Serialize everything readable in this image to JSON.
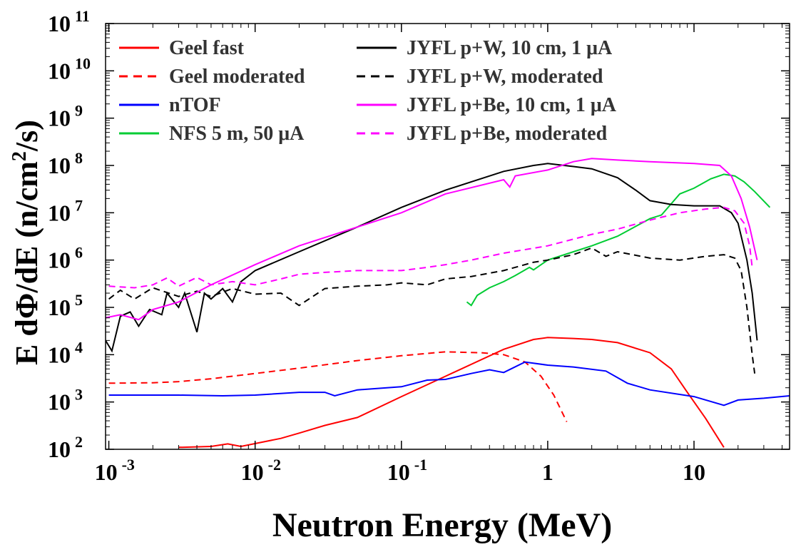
{
  "chart_data": {
    "type": "line",
    "title": "",
    "xlabel": "Neutron Energy (MeV)",
    "ylabel": "E dΦ/dE (n/cm²/s)",
    "ylabel_parts": {
      "main": "E dΦ/dE (n/cm",
      "sup": "2",
      "tail": "/s)"
    },
    "x_scale": "log",
    "y_scale": "log",
    "xlim": [
      0.00095,
      45
    ],
    "ylim": [
      100,
      100000000000
    ],
    "grid": false,
    "legend_position": "top-left",
    "x_ticks": [
      {
        "value": 0.001,
        "base": "10",
        "exp": "-3"
      },
      {
        "value": 0.01,
        "base": "10",
        "exp": "-2"
      },
      {
        "value": 0.1,
        "base": "10",
        "exp": "-1"
      },
      {
        "value": 1,
        "base": "1",
        "exp": ""
      },
      {
        "value": 10,
        "base": "10",
        "exp": ""
      }
    ],
    "y_ticks": [
      {
        "value": 100,
        "base": "10",
        "exp": "2"
      },
      {
        "value": 1000,
        "base": "10",
        "exp": "3"
      },
      {
        "value": 10000,
        "base": "10",
        "exp": "4"
      },
      {
        "value": 100000,
        "base": "10",
        "exp": "5"
      },
      {
        "value": 1000000,
        "base": "10",
        "exp": "6"
      },
      {
        "value": 10000000,
        "base": "10",
        "exp": "7"
      },
      {
        "value": 100000000,
        "base": "10",
        "exp": "8"
      },
      {
        "value": 1000000000,
        "base": "10",
        "exp": "9"
      },
      {
        "value": 10000000000,
        "base": "10",
        "exp": "10"
      },
      {
        "value": 100000000000,
        "base": "10",
        "exp": "11"
      }
    ],
    "series": [
      {
        "name": "Geel fast",
        "color": "#ff0000",
        "dash": "solid",
        "points": [
          [
            0.003,
            110
          ],
          [
            0.005,
            115
          ],
          [
            0.0065,
            130
          ],
          [
            0.008,
            115
          ],
          [
            0.015,
            170
          ],
          [
            0.02,
            220
          ],
          [
            0.03,
            320
          ],
          [
            0.05,
            470
          ],
          [
            0.1,
            1300
          ],
          [
            0.2,
            3500
          ],
          [
            0.5,
            13000
          ],
          [
            0.8,
            21000
          ],
          [
            1.0,
            23000
          ],
          [
            1.5,
            22000
          ],
          [
            2,
            21000
          ],
          [
            3,
            18000
          ],
          [
            5,
            11000
          ],
          [
            7,
            5000
          ],
          [
            9,
            1600
          ],
          [
            12,
            450
          ],
          [
            16,
            110
          ]
        ]
      },
      {
        "name": "Geel moderated",
        "color": "#ff0000",
        "dash": "dashed",
        "points": [
          [
            0.001,
            2500
          ],
          [
            0.002,
            2550
          ],
          [
            0.003,
            2700
          ],
          [
            0.005,
            3100
          ],
          [
            0.01,
            4000
          ],
          [
            0.02,
            5200
          ],
          [
            0.05,
            7500
          ],
          [
            0.1,
            9500
          ],
          [
            0.2,
            11500
          ],
          [
            0.35,
            11000
          ],
          [
            0.5,
            10000
          ],
          [
            0.7,
            7000
          ],
          [
            0.9,
            3500
          ],
          [
            1.1,
            1400
          ],
          [
            1.35,
            380
          ]
        ]
      },
      {
        "name": "nTOF",
        "color": "#0000ff",
        "dash": "solid",
        "points": [
          [
            0.001,
            1400
          ],
          [
            0.003,
            1400
          ],
          [
            0.006,
            1350
          ],
          [
            0.01,
            1400
          ],
          [
            0.02,
            1600
          ],
          [
            0.03,
            1600
          ],
          [
            0.035,
            1350
          ],
          [
            0.05,
            1800
          ],
          [
            0.1,
            2100
          ],
          [
            0.15,
            2900
          ],
          [
            0.2,
            3000
          ],
          [
            0.3,
            4000
          ],
          [
            0.4,
            4800
          ],
          [
            0.5,
            4200
          ],
          [
            0.7,
            7000
          ],
          [
            1.0,
            6000
          ],
          [
            1.5,
            5500
          ],
          [
            2.5,
            4500
          ],
          [
            3.5,
            2500
          ],
          [
            5,
            1800
          ],
          [
            10,
            1300
          ],
          [
            16,
            850
          ],
          [
            20,
            1100
          ],
          [
            30,
            1200
          ],
          [
            45,
            1350
          ]
        ]
      },
      {
        "name": "NFS 5 m, 50 μA",
        "color": "#00cc33",
        "dash": "solid",
        "points": [
          [
            0.28,
            130000
          ],
          [
            0.3,
            110000
          ],
          [
            0.33,
            180000
          ],
          [
            0.4,
            260000
          ],
          [
            0.5,
            350000
          ],
          [
            0.6,
            470000
          ],
          [
            0.75,
            700000
          ],
          [
            0.8,
            620000
          ],
          [
            1.0,
            1000000
          ],
          [
            1.5,
            1500000
          ],
          [
            2,
            2000000
          ],
          [
            3,
            3200000
          ],
          [
            5,
            7500000
          ],
          [
            6,
            9000000
          ],
          [
            8,
            25000000
          ],
          [
            10,
            33000000
          ],
          [
            13,
            52000000
          ],
          [
            16,
            65000000
          ],
          [
            19,
            60000000
          ],
          [
            22,
            45000000
          ],
          [
            26,
            28000000
          ],
          [
            33,
            13000000
          ]
        ]
      },
      {
        "name": "JYFL p+W, 10 cm, 1 μA",
        "color": "#000000",
        "dash": "solid",
        "points": [
          [
            0.00095,
            20000
          ],
          [
            0.00105,
            12000
          ],
          [
            0.0012,
            65000
          ],
          [
            0.0014,
            80000
          ],
          [
            0.0016,
            40000
          ],
          [
            0.0019,
            90000
          ],
          [
            0.0023,
            70000
          ],
          [
            0.0025,
            200000
          ],
          [
            0.003,
            100000
          ],
          [
            0.0033,
            200000
          ],
          [
            0.004,
            30000
          ],
          [
            0.0045,
            200000
          ],
          [
            0.005,
            150000
          ],
          [
            0.006,
            250000
          ],
          [
            0.007,
            130000
          ],
          [
            0.008,
            350000
          ],
          [
            0.01,
            600000
          ],
          [
            0.02,
            1500000
          ],
          [
            0.05,
            5000000
          ],
          [
            0.1,
            13000000
          ],
          [
            0.2,
            30000000
          ],
          [
            0.5,
            75000000
          ],
          [
            0.8,
            100000000
          ],
          [
            1.0,
            110000000
          ],
          [
            1.5,
            95000000
          ],
          [
            2,
            85000000
          ],
          [
            3,
            55000000
          ],
          [
            4,
            30000000
          ],
          [
            5,
            18000000
          ],
          [
            7,
            15000000
          ],
          [
            10,
            14000000
          ],
          [
            15,
            14000000
          ],
          [
            18,
            10000000
          ],
          [
            20,
            6000000
          ],
          [
            23,
            1000000
          ],
          [
            25,
            200000
          ],
          [
            27,
            20000
          ]
        ]
      },
      {
        "name": "JYFL p+W, moderated",
        "color": "#000000",
        "dash": "dashed",
        "points": [
          [
            0.001,
            150000
          ],
          [
            0.0012,
            230000
          ],
          [
            0.0015,
            150000
          ],
          [
            0.002,
            260000
          ],
          [
            0.003,
            170000
          ],
          [
            0.004,
            220000
          ],
          [
            0.005,
            170000
          ],
          [
            0.007,
            250000
          ],
          [
            0.01,
            190000
          ],
          [
            0.015,
            200000
          ],
          [
            0.02,
            110000
          ],
          [
            0.03,
            250000
          ],
          [
            0.05,
            280000
          ],
          [
            0.08,
            300000
          ],
          [
            0.1,
            330000
          ],
          [
            0.15,
            300000
          ],
          [
            0.2,
            400000
          ],
          [
            0.3,
            450000
          ],
          [
            0.5,
            600000
          ],
          [
            0.8,
            900000
          ],
          [
            1.0,
            1000000
          ],
          [
            1.5,
            1300000
          ],
          [
            2,
            1800000
          ],
          [
            2.5,
            1200000
          ],
          [
            3,
            1500000
          ],
          [
            5,
            1100000
          ],
          [
            8,
            1000000
          ],
          [
            12,
            1200000
          ],
          [
            16,
            1300000
          ],
          [
            19,
            1100000
          ],
          [
            21,
            600000
          ],
          [
            23,
            100000
          ],
          [
            25,
            10000
          ],
          [
            26,
            4000
          ]
        ]
      },
      {
        "name": "JYFL p+Be, 10 cm, 1 μA",
        "color": "#ff00ff",
        "dash": "solid",
        "points": [
          [
            0.00095,
            60000
          ],
          [
            0.0012,
            70000
          ],
          [
            0.0016,
            55000
          ],
          [
            0.002,
            90000
          ],
          [
            0.003,
            130000
          ],
          [
            0.005,
            300000
          ],
          [
            0.01,
            800000
          ],
          [
            0.02,
            2000000
          ],
          [
            0.05,
            5000000
          ],
          [
            0.1,
            10000000
          ],
          [
            0.2,
            25000000
          ],
          [
            0.5,
            50000000
          ],
          [
            0.55,
            35000000
          ],
          [
            0.6,
            60000000
          ],
          [
            1.0,
            80000000
          ],
          [
            1.5,
            120000000
          ],
          [
            2,
            140000000
          ],
          [
            3,
            130000000
          ],
          [
            5,
            120000000
          ],
          [
            10,
            110000000
          ],
          [
            15,
            100000000
          ],
          [
            18,
            60000000
          ],
          [
            21,
            20000000
          ],
          [
            24,
            5000000
          ],
          [
            27,
            1000000
          ]
        ]
      },
      {
        "name": "JYFL p+Be, moderated",
        "color": "#ff00ff",
        "dash": "dashed",
        "points": [
          [
            0.001,
            280000
          ],
          [
            0.0015,
            260000
          ],
          [
            0.002,
            300000
          ],
          [
            0.0025,
            420000
          ],
          [
            0.003,
            280000
          ],
          [
            0.004,
            430000
          ],
          [
            0.005,
            300000
          ],
          [
            0.007,
            350000
          ],
          [
            0.01,
            300000
          ],
          [
            0.015,
            400000
          ],
          [
            0.02,
            500000
          ],
          [
            0.03,
            550000
          ],
          [
            0.05,
            600000
          ],
          [
            0.1,
            600000
          ],
          [
            0.15,
            700000
          ],
          [
            0.2,
            800000
          ],
          [
            0.3,
            1000000
          ],
          [
            0.5,
            1400000
          ],
          [
            1.0,
            2000000
          ],
          [
            2,
            3500000
          ],
          [
            3,
            4500000
          ],
          [
            5,
            7000000
          ],
          [
            8,
            10000000
          ],
          [
            12,
            12000000
          ],
          [
            16,
            13000000
          ],
          [
            19,
            11000000
          ],
          [
            22,
            6000000
          ],
          [
            24,
            2000000
          ],
          [
            25,
            700000
          ]
        ]
      }
    ],
    "legend": {
      "columns": [
        [
          "Geel fast",
          "Geel moderated",
          "nTOF",
          "NFS 5 m, 50 μA"
        ],
        [
          "JYFL p+W, 10 cm, 1 μA",
          "JYFL p+W, moderated",
          "JYFL p+Be, 10 cm, 1 μA",
          "JYFL p+Be, moderated"
        ]
      ]
    }
  }
}
